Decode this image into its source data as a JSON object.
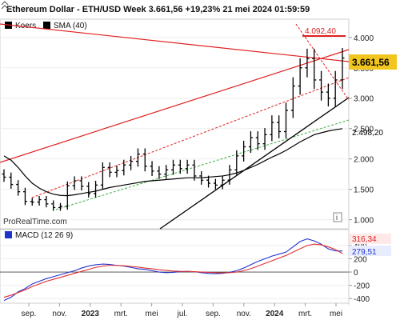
{
  "header": {
    "title": "Ethereum Dollar - ETH/USD Week 3.661,56 +19,23% 21 mei 2024 01:59:59"
  },
  "legend": {
    "items": [
      {
        "label": "Koers",
        "color": "#000000"
      },
      {
        "label": "SMA (40)",
        "color": "#000000"
      }
    ]
  },
  "watermark": "ProRealTime.com",
  "info_icon_text": "i",
  "colors": {
    "background": "#ffffff",
    "price_bars": "#000000",
    "sma": "#000000",
    "trend_red": "#e02020",
    "trend_green": "#3fae3f",
    "support_black": "#000000",
    "price_badge": "#f2c61f",
    "macd_line": "#2233cc",
    "signal_line": "#e03030",
    "grid": "#e6e6e6"
  },
  "chart_data": [
    {
      "type": "ohlc",
      "name": "price-panel",
      "ylim": [
        850,
        4300
      ],
      "y_ticks": [
        "1.000",
        "1.500",
        "2.000",
        "2.500",
        "3.000",
        "3.500",
        "4.000"
      ],
      "x_tick_labels": [
        "sep.",
        "nov.",
        "2023",
        "mrt.",
        "mei",
        "jul.",
        "sep.",
        "nov.",
        "2024",
        "mrt.",
        "mei"
      ],
      "annotations": {
        "last_price": "3.661,56",
        "high_label": "4.092,40",
        "sma_label": "2.498,20"
      },
      "series": [
        {
          "name": "Koers",
          "close": [
            1700,
            1580,
            1460,
            1300,
            1290,
            1330,
            1260,
            1200,
            1220,
            1560,
            1640,
            1550,
            1430,
            1570,
            1860,
            1780,
            1810,
            1900,
            1960,
            2080,
            1880,
            1800,
            1750,
            1820,
            1900,
            1840,
            1900,
            1720,
            1650,
            1600,
            1570,
            1650,
            1820,
            2050,
            2200,
            2350,
            2250,
            2400,
            2600,
            2450,
            2800,
            3200,
            3500,
            3650,
            3300,
            3100,
            3000,
            3300,
            3661.56
          ]
        },
        {
          "name": "SMA (40)",
          "values": [
            2050,
            1980,
            1860,
            1720,
            1600,
            1520,
            1460,
            1420,
            1400,
            1395,
            1410,
            1430,
            1450,
            1470,
            1500,
            1530,
            1550,
            1570,
            1590,
            1610,
            1630,
            1640,
            1650,
            1660,
            1670,
            1680,
            1690,
            1690,
            1690,
            1700,
            1710,
            1720,
            1740,
            1770,
            1810,
            1860,
            1910,
            1970,
            2030,
            2080,
            2140,
            2210,
            2280,
            2340,
            2400,
            2430,
            2460,
            2480,
            2498.2
          ]
        }
      ]
    },
    {
      "type": "line",
      "name": "MACD (12 26 9)",
      "ylim": [
        -470,
        640
      ],
      "y_ticks": [
        "-400",
        "-200",
        "0",
        "200",
        "400"
      ],
      "annotations": {
        "macd_value": "316,34",
        "signal_value": "279,51"
      },
      "series": [
        {
          "name": "MACD",
          "values": [
            -430,
            -380,
            -300,
            -250,
            -180,
            -140,
            -100,
            -70,
            -40,
            -10,
            20,
            60,
            90,
            110,
            120,
            115,
            100,
            90,
            70,
            50,
            40,
            20,
            0,
            -10,
            -5,
            5,
            10,
            5,
            -10,
            -20,
            -25,
            -20,
            -5,
            20,
            60,
            110,
            160,
            200,
            240,
            270,
            300,
            380,
            460,
            500,
            470,
            420,
            350,
            320,
            316.34
          ]
        },
        {
          "name": "Signal",
          "values": [
            -380,
            -350,
            -310,
            -270,
            -220,
            -180,
            -140,
            -110,
            -80,
            -50,
            -20,
            10,
            40,
            70,
            90,
            100,
            100,
            95,
            85,
            75,
            60,
            50,
            35,
            25,
            15,
            10,
            8,
            6,
            0,
            -5,
            -10,
            -12,
            -10,
            0,
            20,
            50,
            90,
            130,
            170,
            210,
            250,
            300,
            350,
            400,
            420,
            410,
            380,
            340,
            279.51
          ]
        }
      ]
    }
  ]
}
